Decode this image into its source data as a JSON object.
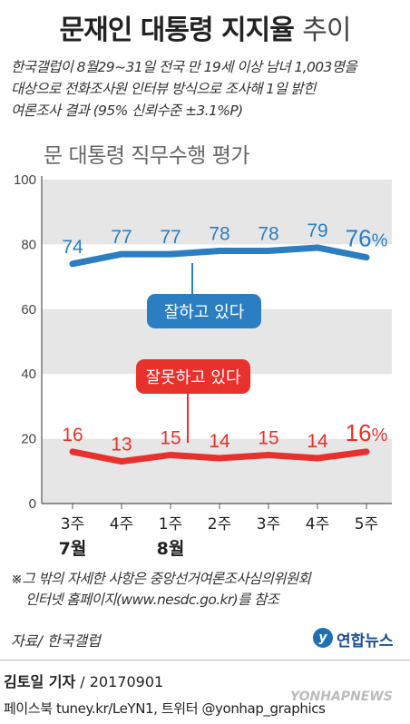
{
  "title": {
    "main": "문재인 대통령 지지율",
    "trend": "추이"
  },
  "description": [
    "한국갤럽이 8월29~31일 전국 만 19세 이상 남녀 1,003명을",
    "대상으로 전화조사원 인터뷰 방식으로 조사해 1일 밝힌",
    "여론조사 결과 (95% 신뢰수준 ±3.1%P)"
  ],
  "chart_data": {
    "type": "line",
    "title": "문 대통령 직무수행 평가",
    "categories": [
      "3주",
      "4주",
      "1주",
      "2주",
      "3주",
      "4주",
      "5주"
    ],
    "month_labels": [
      {
        "index": 0,
        "label": "7월"
      },
      {
        "index": 2,
        "label": "8월"
      }
    ],
    "series": [
      {
        "name": "잘하고 있다",
        "values": [
          74,
          77,
          77,
          78,
          78,
          79,
          76
        ],
        "color": "#2b7ec1",
        "last_suffix": "%"
      },
      {
        "name": "잘못하고 있다",
        "values": [
          16,
          13,
          15,
          14,
          15,
          14,
          16
        ],
        "color": "#e8312c",
        "last_suffix": "%"
      }
    ],
    "yticks": [
      0,
      20,
      40,
      60,
      80,
      100
    ],
    "ylim": [
      0,
      100
    ],
    "grid": "alternating bands"
  },
  "notes": [
    "※그 밖의 자세한 사항은 중앙선거여론조사심의위원회",
    "인터넷 홈페이지(www.nesdc.go.kr)를 참조"
  ],
  "source": "자료/ 한국갤럽",
  "logo": {
    "mark": "y",
    "name": "연합뉴스"
  },
  "byline": {
    "author": "김토일 기자",
    "date": " / 20170901"
  },
  "social": "페이스북 tuney.kr/LeYN1, 트위터 @yonhap_graphics",
  "watermark": "YONHAPNEWS"
}
